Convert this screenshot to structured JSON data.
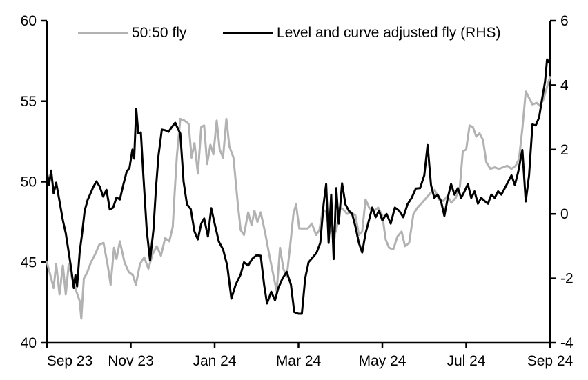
{
  "chart_data": {
    "type": "line",
    "title": "",
    "x_axis": {
      "tick_positions_months": [
        0,
        2,
        4,
        6,
        8,
        10,
        12
      ],
      "tick_labels": [
        "Sep 23",
        "Nov 23",
        "Jan 24",
        "Mar 24",
        "May 24",
        "Jul 24",
        "Sep 24"
      ],
      "range_months": [
        0,
        12
      ]
    },
    "left_axis": {
      "ticks": [
        60,
        55,
        50,
        45,
        40
      ],
      "range": [
        40,
        60
      ]
    },
    "right_axis": {
      "ticks": [
        6,
        4,
        2,
        0,
        -2,
        -4
      ],
      "range": [
        -4,
        6
      ]
    },
    "grid": "off",
    "legend_position": "top",
    "series": [
      {
        "name": "50:50 fly",
        "axis": "left",
        "color": "#b2b2b2",
        "points": [
          [
            0,
            45.0
          ],
          [
            0.08,
            44.2
          ],
          [
            0.16,
            43.4
          ],
          [
            0.22,
            44.9
          ],
          [
            0.3,
            43.0
          ],
          [
            0.38,
            44.8
          ],
          [
            0.45,
            43.0
          ],
          [
            0.52,
            44.9
          ],
          [
            0.6,
            44.0
          ],
          [
            0.7,
            43.2
          ],
          [
            0.78,
            42.6
          ],
          [
            0.82,
            41.5
          ],
          [
            0.88,
            44.0
          ],
          [
            0.95,
            44.3
          ],
          [
            1.05,
            45.0
          ],
          [
            1.15,
            45.5
          ],
          [
            1.25,
            46.1
          ],
          [
            1.35,
            46.2
          ],
          [
            1.45,
            44.8
          ],
          [
            1.52,
            43.6
          ],
          [
            1.6,
            45.9
          ],
          [
            1.66,
            45.2
          ],
          [
            1.74,
            46.3
          ],
          [
            1.85,
            45.0
          ],
          [
            1.95,
            44.4
          ],
          [
            2.05,
            44.2
          ],
          [
            2.12,
            43.6
          ],
          [
            2.22,
            44.9
          ],
          [
            2.32,
            45.3
          ],
          [
            2.42,
            44.6
          ],
          [
            2.52,
            45.5
          ],
          [
            2.62,
            46.0
          ],
          [
            2.72,
            45.4
          ],
          [
            2.82,
            46.5
          ],
          [
            2.92,
            46.3
          ],
          [
            3.0,
            47.2
          ],
          [
            3.05,
            49.5
          ],
          [
            3.1,
            51.6
          ],
          [
            3.18,
            53.9
          ],
          [
            3.28,
            53.8
          ],
          [
            3.38,
            53.6
          ],
          [
            3.45,
            51.5
          ],
          [
            3.52,
            52.4
          ],
          [
            3.6,
            50.5
          ],
          [
            3.68,
            53.4
          ],
          [
            3.75,
            53.5
          ],
          [
            3.82,
            51.1
          ],
          [
            3.9,
            52.3
          ],
          [
            3.97,
            51.7
          ],
          [
            4.05,
            53.8
          ],
          [
            4.12,
            52.0
          ],
          [
            4.2,
            51.5
          ],
          [
            4.28,
            53.9
          ],
          [
            4.35,
            52.2
          ],
          [
            4.45,
            51.5
          ],
          [
            4.55,
            48.7
          ],
          [
            4.62,
            47.0
          ],
          [
            4.7,
            46.7
          ],
          [
            4.8,
            48.1
          ],
          [
            4.88,
            47.3
          ],
          [
            4.95,
            48.2
          ],
          [
            5.02,
            47.5
          ],
          [
            5.1,
            48.1
          ],
          [
            5.2,
            46.9
          ],
          [
            5.3,
            45.5
          ],
          [
            5.4,
            44.2
          ],
          [
            5.48,
            43.2
          ],
          [
            5.56,
            45.9
          ],
          [
            5.64,
            44.6
          ],
          [
            5.72,
            44.1
          ],
          [
            5.8,
            46.0
          ],
          [
            5.88,
            48.0
          ],
          [
            5.94,
            48.6
          ],
          [
            6.02,
            47.1
          ],
          [
            6.12,
            47.1
          ],
          [
            6.22,
            47.1
          ],
          [
            6.32,
            47.4
          ],
          [
            6.42,
            46.7
          ],
          [
            6.5,
            47.0
          ],
          [
            6.58,
            48.3
          ],
          [
            6.66,
            48.1
          ],
          [
            6.74,
            46.8
          ],
          [
            6.82,
            47.2
          ],
          [
            6.9,
            46.9
          ],
          [
            6.98,
            48.4
          ],
          [
            7.06,
            48.3
          ],
          [
            7.16,
            48.0
          ],
          [
            7.26,
            48.1
          ],
          [
            7.36,
            47.9
          ],
          [
            7.44,
            46.7
          ],
          [
            7.52,
            46.9
          ],
          [
            7.6,
            48.9
          ],
          [
            7.7,
            48.3
          ],
          [
            7.8,
            48.2
          ],
          [
            7.9,
            48.4
          ],
          [
            8.0,
            47.9
          ],
          [
            8.08,
            46.4
          ],
          [
            8.16,
            45.9
          ],
          [
            8.26,
            45.8
          ],
          [
            8.36,
            46.6
          ],
          [
            8.46,
            46.9
          ],
          [
            8.54,
            46.0
          ],
          [
            8.64,
            46.2
          ],
          [
            8.74,
            48.0
          ],
          [
            8.84,
            48.4
          ],
          [
            8.95,
            48.7
          ],
          [
            9.05,
            49.0
          ],
          [
            9.15,
            49.3
          ],
          [
            9.25,
            49.5
          ],
          [
            9.35,
            48.9
          ],
          [
            9.45,
            48.8
          ],
          [
            9.55,
            49.1
          ],
          [
            9.65,
            48.7
          ],
          [
            9.75,
            49.0
          ],
          [
            9.85,
            49.7
          ],
          [
            9.92,
            51.9
          ],
          [
            10.0,
            52.0
          ],
          [
            10.08,
            53.5
          ],
          [
            10.16,
            53.4
          ],
          [
            10.24,
            52.8
          ],
          [
            10.32,
            53.0
          ],
          [
            10.4,
            52.6
          ],
          [
            10.48,
            51.2
          ],
          [
            10.58,
            50.8
          ],
          [
            10.68,
            50.9
          ],
          [
            10.78,
            50.8
          ],
          [
            10.88,
            50.9
          ],
          [
            10.98,
            51.0
          ],
          [
            11.08,
            50.8
          ],
          [
            11.18,
            51.0
          ],
          [
            11.26,
            51.4
          ],
          [
            11.34,
            53.3
          ],
          [
            11.42,
            55.6
          ],
          [
            11.5,
            55.2
          ],
          [
            11.58,
            54.8
          ],
          [
            11.68,
            54.9
          ],
          [
            11.76,
            54.7
          ],
          [
            11.84,
            55.1
          ],
          [
            11.93,
            55.9
          ],
          [
            12.0,
            56.5
          ]
        ]
      },
      {
        "name": "Level and curve adjusted fly (RHS)",
        "axis": "right",
        "color": "#000000",
        "points": [
          [
            0,
            1.3
          ],
          [
            0.05,
            0.9
          ],
          [
            0.1,
            1.35
          ],
          [
            0.16,
            0.64
          ],
          [
            0.22,
            0.97
          ],
          [
            0.3,
            0.4
          ],
          [
            0.38,
            -0.2
          ],
          [
            0.45,
            -0.6
          ],
          [
            0.52,
            -1.2
          ],
          [
            0.58,
            -1.7
          ],
          [
            0.64,
            -2.3
          ],
          [
            0.68,
            -1.9
          ],
          [
            0.72,
            -2.25
          ],
          [
            0.78,
            -1.2
          ],
          [
            0.84,
            -0.6
          ],
          [
            0.9,
            0.1
          ],
          [
            0.97,
            0.43
          ],
          [
            1.02,
            0.58
          ],
          [
            1.1,
            0.82
          ],
          [
            1.18,
            1.01
          ],
          [
            1.26,
            0.85
          ],
          [
            1.34,
            0.54
          ],
          [
            1.42,
            0.75
          ],
          [
            1.5,
            0.14
          ],
          [
            1.58,
            0.2
          ],
          [
            1.66,
            0.51
          ],
          [
            1.74,
            0.45
          ],
          [
            1.82,
            0.9
          ],
          [
            1.9,
            1.3
          ],
          [
            1.97,
            1.44
          ],
          [
            2.04,
            2.0
          ],
          [
            2.08,
            1.72
          ],
          [
            2.13,
            3.26
          ],
          [
            2.18,
            2.5
          ],
          [
            2.24,
            2.53
          ],
          [
            2.3,
            1.2
          ],
          [
            2.38,
            -0.5
          ],
          [
            2.46,
            -1.45
          ],
          [
            2.54,
            -0.5
          ],
          [
            2.6,
            0.8
          ],
          [
            2.66,
            1.8
          ],
          [
            2.74,
            2.62
          ],
          [
            2.82,
            2.6
          ],
          [
            2.9,
            2.55
          ],
          [
            2.98,
            2.7
          ],
          [
            3.06,
            2.83
          ],
          [
            3.14,
            2.6
          ],
          [
            3.18,
            2.5
          ],
          [
            3.26,
            1.0
          ],
          [
            3.34,
            0.3
          ],
          [
            3.43,
            0.15
          ],
          [
            3.52,
            -0.55
          ],
          [
            3.6,
            -0.79
          ],
          [
            3.68,
            -0.3
          ],
          [
            3.75,
            -0.14
          ],
          [
            3.84,
            -0.7
          ],
          [
            3.92,
            0.18
          ],
          [
            4.0,
            -0.3
          ],
          [
            4.1,
            -0.86
          ],
          [
            4.2,
            -1.1
          ],
          [
            4.3,
            -1.6
          ],
          [
            4.4,
            -2.63
          ],
          [
            4.5,
            -2.2
          ],
          [
            4.62,
            -1.88
          ],
          [
            4.7,
            -1.5
          ],
          [
            4.8,
            -1.6
          ],
          [
            4.9,
            -1.39
          ],
          [
            5.0,
            -1.28
          ],
          [
            5.1,
            -1.3
          ],
          [
            5.18,
            -2.2
          ],
          [
            5.25,
            -2.78
          ],
          [
            5.35,
            -2.42
          ],
          [
            5.44,
            -2.68
          ],
          [
            5.52,
            -2.3
          ],
          [
            5.62,
            -2.0
          ],
          [
            5.72,
            -1.8
          ],
          [
            5.82,
            -2.2
          ],
          [
            5.9,
            -3.05
          ],
          [
            6.0,
            -3.1
          ],
          [
            6.08,
            -3.1
          ],
          [
            6.16,
            -2.0
          ],
          [
            6.24,
            -1.5
          ],
          [
            6.34,
            -1.35
          ],
          [
            6.43,
            -1.21
          ],
          [
            6.52,
            -0.9
          ],
          [
            6.6,
            0.3
          ],
          [
            6.66,
            0.93
          ],
          [
            6.72,
            -0.9
          ],
          [
            6.78,
            0.6
          ],
          [
            6.84,
            -1.4
          ],
          [
            6.9,
            0.8
          ],
          [
            6.96,
            -0.3
          ],
          [
            7.04,
            0.95
          ],
          [
            7.12,
            0.3
          ],
          [
            7.2,
            0.1
          ],
          [
            7.28,
            0.0
          ],
          [
            7.36,
            -0.4
          ],
          [
            7.44,
            -0.9
          ],
          [
            7.52,
            -1.2
          ],
          [
            7.6,
            -0.6
          ],
          [
            7.68,
            -0.2
          ],
          [
            7.76,
            0.2
          ],
          [
            7.84,
            -0.1
          ],
          [
            7.92,
            0.1
          ],
          [
            8.0,
            -0.2
          ],
          [
            8.1,
            0.0
          ],
          [
            8.2,
            -0.3
          ],
          [
            8.3,
            0.2
          ],
          [
            8.4,
            0.1
          ],
          [
            8.5,
            -0.1
          ],
          [
            8.6,
            0.3
          ],
          [
            8.7,
            0.5
          ],
          [
            8.8,
            0.79
          ],
          [
            8.9,
            0.8
          ],
          [
            9.0,
            1.2
          ],
          [
            9.08,
            2.14
          ],
          [
            9.16,
            0.9
          ],
          [
            9.24,
            0.5
          ],
          [
            9.32,
            0.6
          ],
          [
            9.4,
            0.4
          ],
          [
            9.48,
            -0.06
          ],
          [
            9.56,
            0.5
          ],
          [
            9.64,
            0.93
          ],
          [
            9.72,
            0.6
          ],
          [
            9.8,
            0.8
          ],
          [
            9.88,
            0.5
          ],
          [
            9.96,
            0.7
          ],
          [
            10.04,
            0.93
          ],
          [
            10.12,
            0.5
          ],
          [
            10.2,
            0.7
          ],
          [
            10.28,
            0.32
          ],
          [
            10.36,
            0.5
          ],
          [
            10.44,
            0.4
          ],
          [
            10.52,
            0.32
          ],
          [
            10.6,
            0.6
          ],
          [
            10.68,
            0.5
          ],
          [
            10.76,
            0.7
          ],
          [
            10.84,
            0.6
          ],
          [
            10.92,
            0.8
          ],
          [
            11.0,
            1.0
          ],
          [
            11.08,
            1.2
          ],
          [
            11.16,
            0.9
          ],
          [
            11.24,
            1.3
          ],
          [
            11.34,
            1.99
          ],
          [
            11.42,
            0.39
          ],
          [
            11.5,
            1.2
          ],
          [
            11.58,
            2.78
          ],
          [
            11.66,
            2.75
          ],
          [
            11.74,
            3.0
          ],
          [
            11.8,
            3.5
          ],
          [
            11.88,
            4.1
          ],
          [
            11.93,
            4.8
          ],
          [
            12.0,
            4.65
          ]
        ]
      }
    ]
  },
  "legend": {
    "items": [
      {
        "label": "50:50 fly",
        "color": "#b2b2b2"
      },
      {
        "label": "Level and curve adjusted fly (RHS)",
        "color": "#000000"
      }
    ]
  },
  "style": {
    "background": "#ffffff",
    "axis_color": "#000000",
    "text_color": "#000000"
  }
}
